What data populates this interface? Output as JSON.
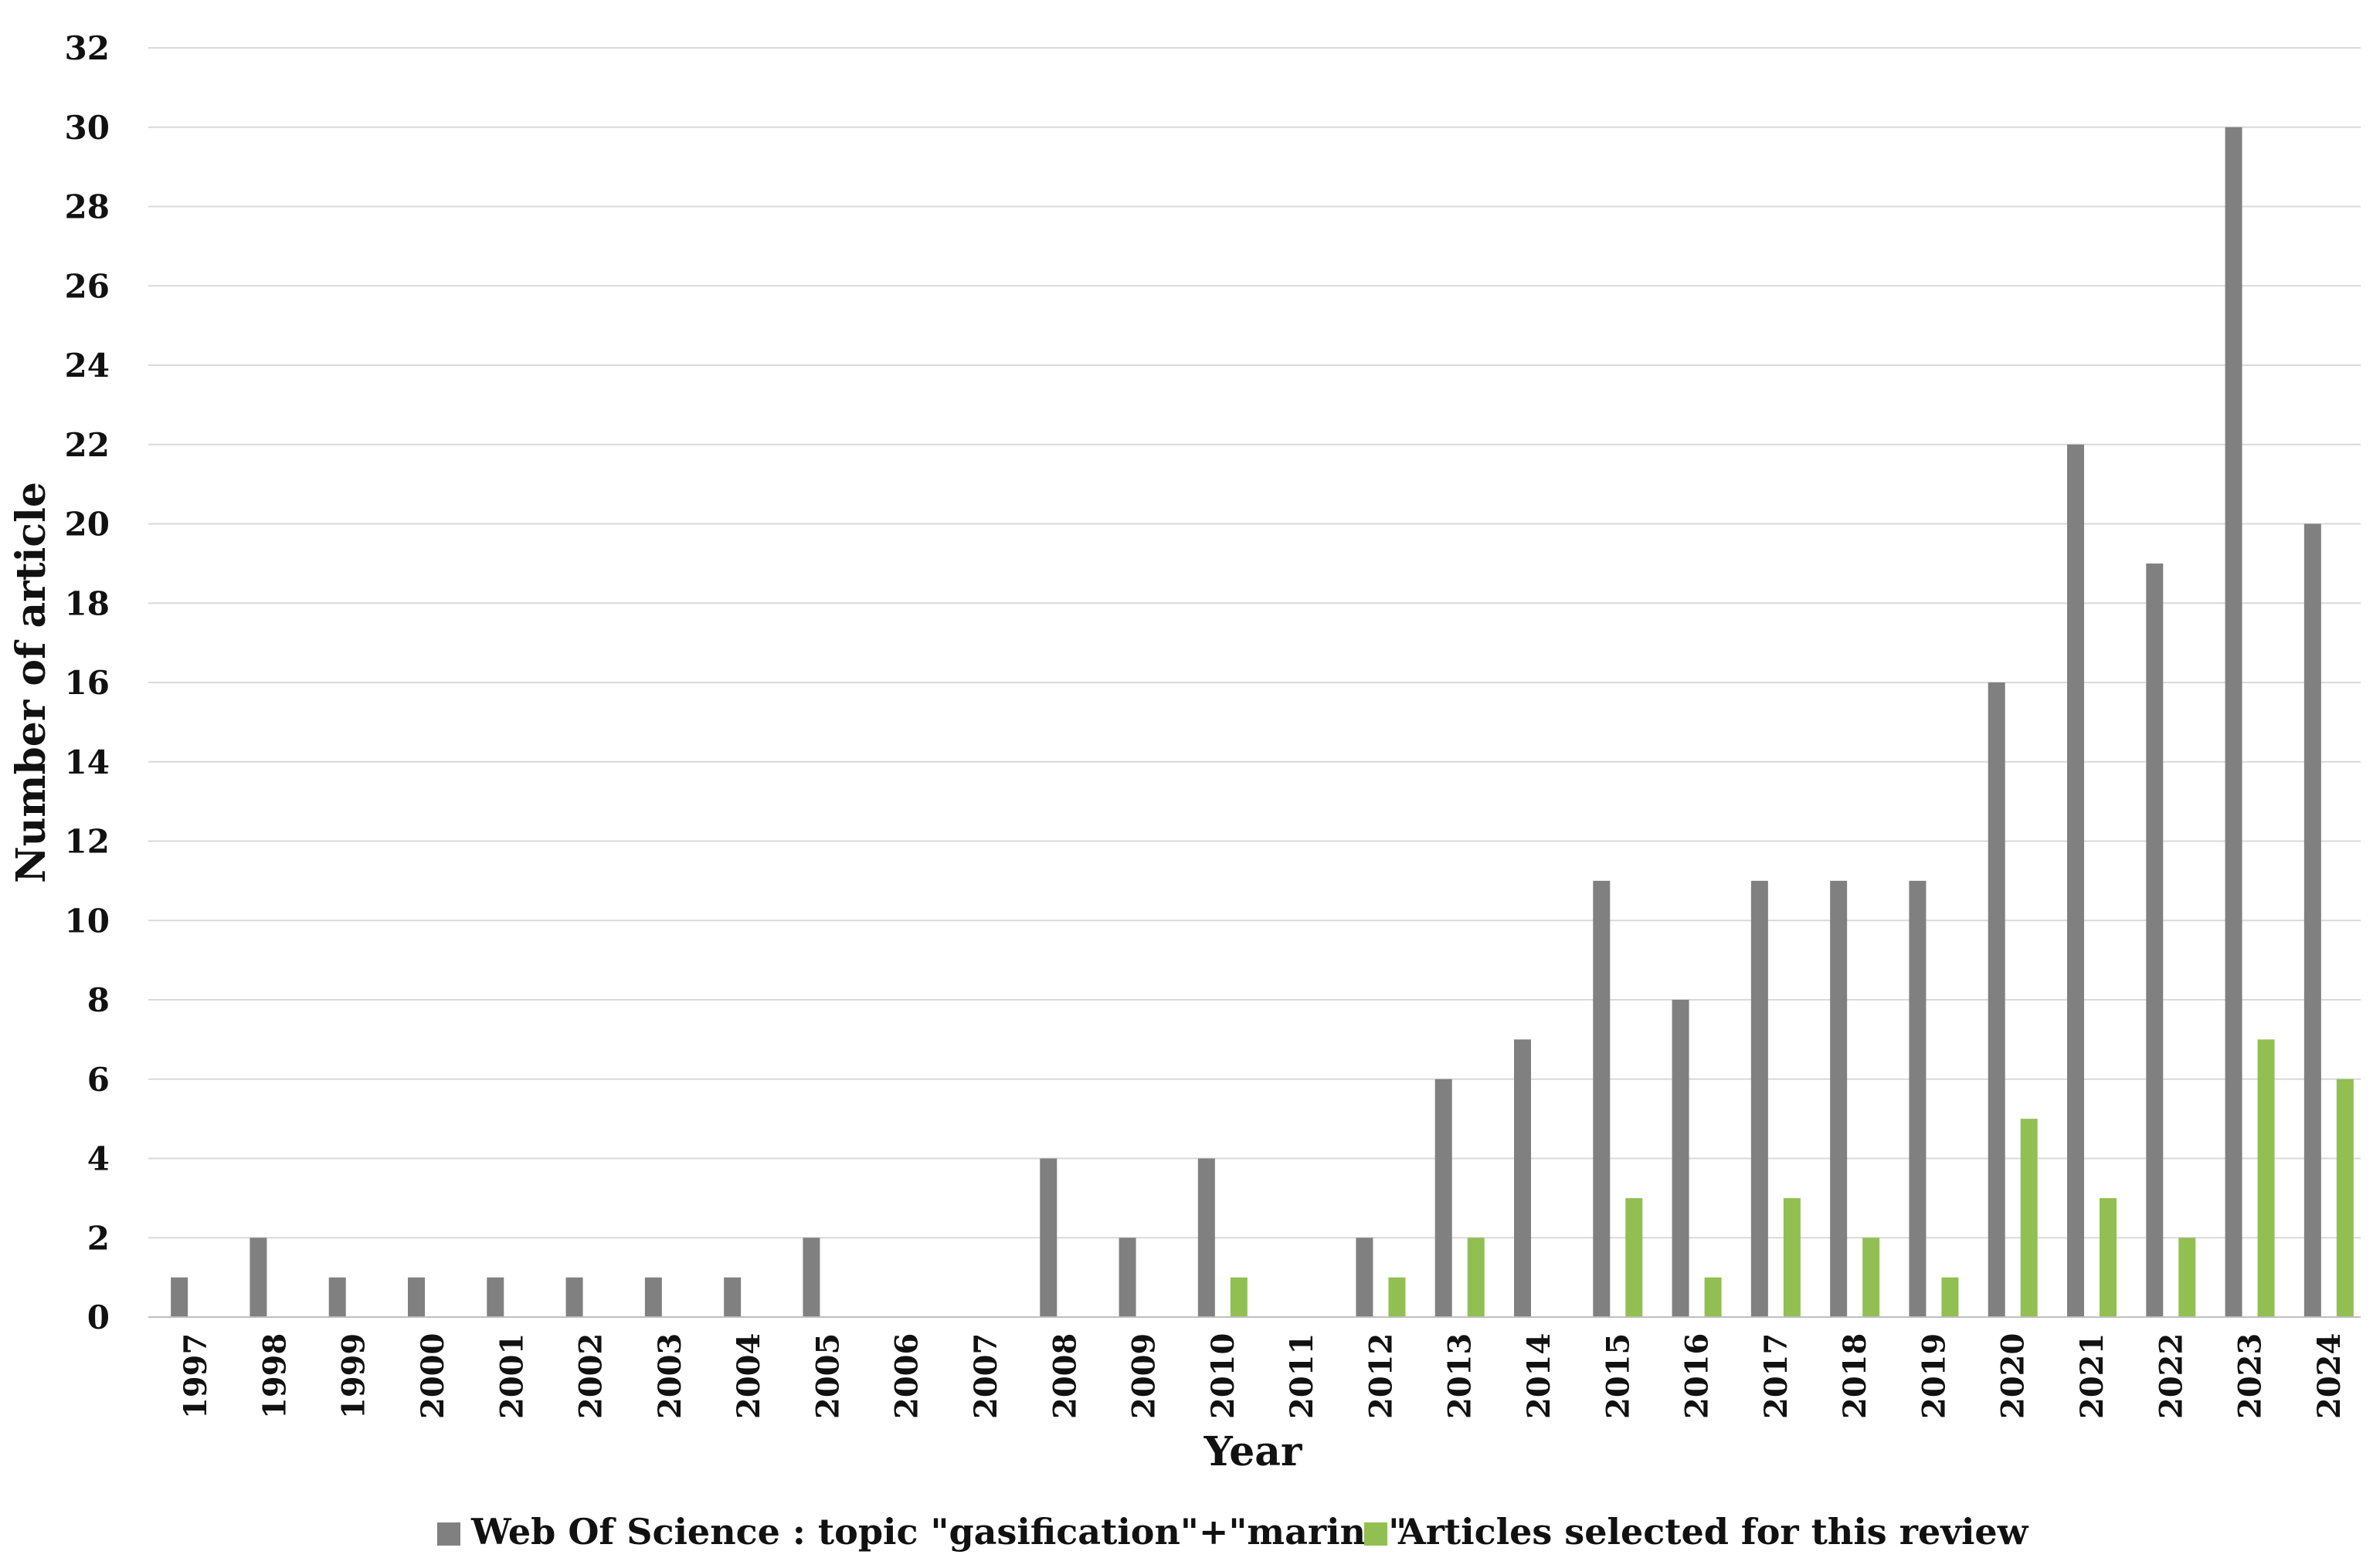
{
  "chart_data": {
    "type": "bar",
    "title": "",
    "xlabel": "Year",
    "ylabel": "Number of article",
    "ylim": [
      0,
      32
    ],
    "yticks": [
      "0",
      "2",
      "4",
      "6",
      "8",
      "10",
      "12",
      "14",
      "16",
      "18",
      "20",
      "22",
      "24",
      "26",
      "28",
      "30",
      "32"
    ],
    "grid": true,
    "legend_position": "bottom",
    "categories": [
      "1997",
      "1998",
      "1999",
      "2000",
      "2001",
      "2002",
      "2003",
      "2004",
      "2005",
      "2006",
      "2007",
      "2008",
      "2009",
      "2010",
      "2011",
      "2012",
      "2013",
      "2014",
      "2015",
      "2016",
      "2017",
      "2018",
      "2019",
      "2020",
      "2021",
      "2022",
      "2023",
      "2024"
    ],
    "series": [
      {
        "name": "Web Of Science : topic \"gasification\"+\"marine\"",
        "color": "#808080",
        "values": [
          1,
          2,
          1,
          1,
          1,
          1,
          1,
          1,
          2,
          0,
          0,
          4,
          2,
          4,
          0,
          2,
          6,
          7,
          11,
          8,
          11,
          11,
          11,
          16,
          22,
          19,
          30,
          20
        ]
      },
      {
        "name": "Articles selected for this review",
        "color": "#92bf52",
        "values": [
          0,
          0,
          0,
          0,
          0,
          0,
          0,
          0,
          0,
          0,
          0,
          0,
          0,
          1,
          0,
          1,
          2,
          0,
          3,
          1,
          3,
          2,
          1,
          5,
          3,
          2,
          7,
          6
        ]
      }
    ]
  }
}
